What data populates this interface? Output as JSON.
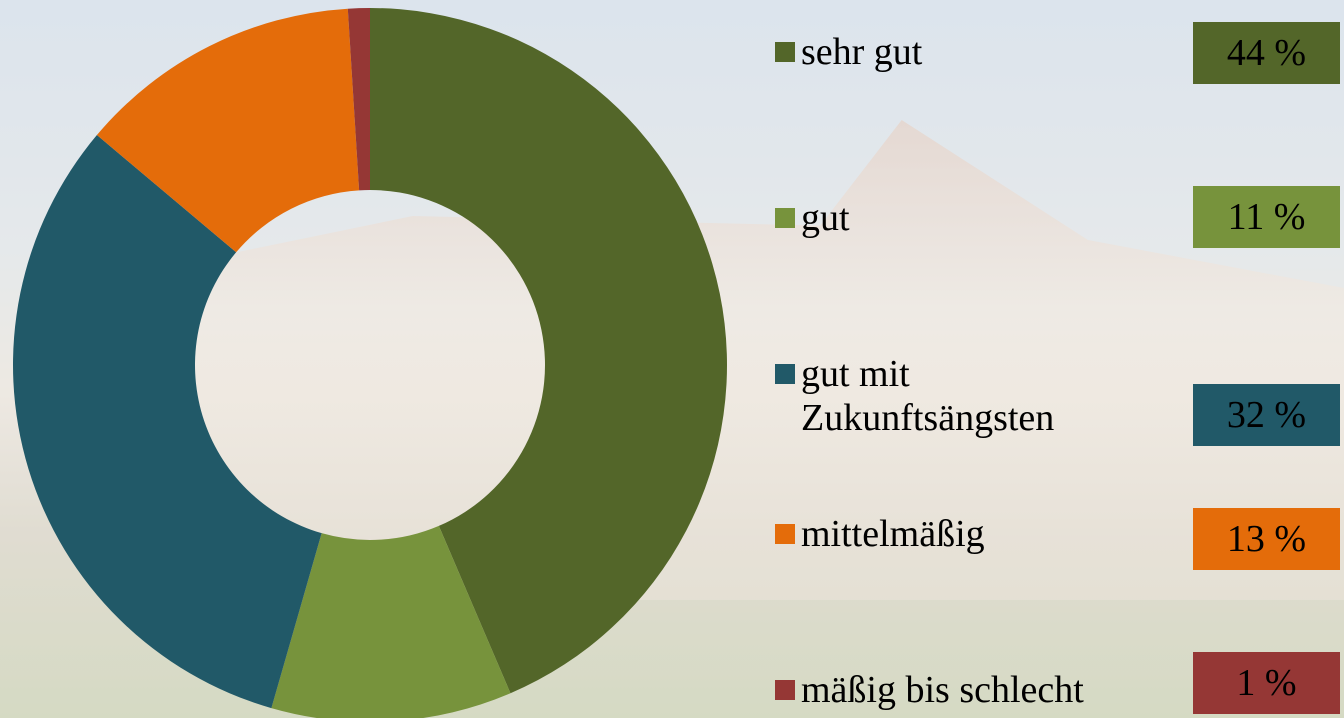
{
  "chart_data": {
    "type": "donut",
    "categories": [
      "sehr gut",
      "gut",
      "gut mit Zukunftsängsten",
      "mittelmäßig",
      "mäßig bis schlecht"
    ],
    "values": [
      44,
      11,
      32,
      13,
      1
    ],
    "value_labels": [
      "44 %",
      "11 %",
      "32 %",
      "13 %",
      "1 %"
    ],
    "colors": [
      "#536629",
      "#77933c",
      "#215968",
      "#e46c0a",
      "#953735"
    ]
  }
}
